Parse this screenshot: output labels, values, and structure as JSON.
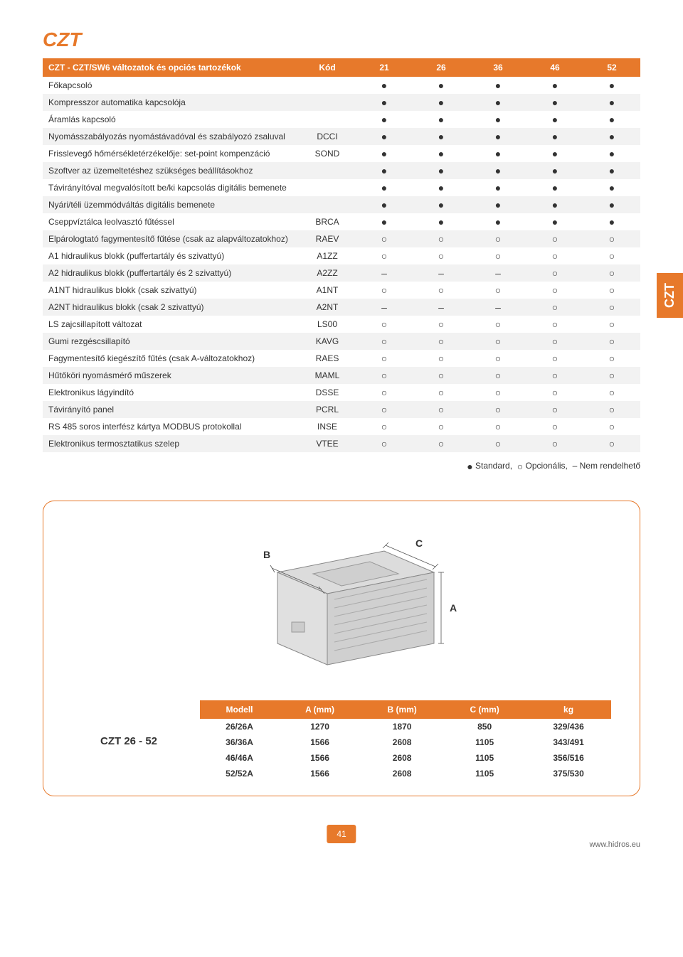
{
  "page_title": "CZT",
  "side_tab": "CZT",
  "accent_color": "#e7792b",
  "spec_table": {
    "header_label": "CZT - CZT/SW6 változatok és opciós tartozékok",
    "code_header": "Kód",
    "columns": [
      "21",
      "26",
      "36",
      "46",
      "52"
    ],
    "symbol_map": {
      "std": "●",
      "opt": "○",
      "na": "–"
    },
    "rows": [
      {
        "label": "Főkapcsoló",
        "code": "",
        "vals": [
          "std",
          "std",
          "std",
          "std",
          "std"
        ]
      },
      {
        "label": "Kompresszor automatika kapcsolója",
        "code": "",
        "vals": [
          "std",
          "std",
          "std",
          "std",
          "std"
        ]
      },
      {
        "label": "Áramlás kapcsoló",
        "code": "",
        "vals": [
          "std",
          "std",
          "std",
          "std",
          "std"
        ]
      },
      {
        "label": "Nyomásszabályozás nyomástávadóval és szabályozó zsaluval",
        "code": "DCCI",
        "vals": [
          "std",
          "std",
          "std",
          "std",
          "std"
        ]
      },
      {
        "label": "Frisslevegő hőmérsékletérzékelője: set-point kompenzáció",
        "code": "SOND",
        "vals": [
          "std",
          "std",
          "std",
          "std",
          "std"
        ]
      },
      {
        "label": "Szoftver az üzemeltetéshez szükséges beállításokhoz",
        "code": "",
        "vals": [
          "std",
          "std",
          "std",
          "std",
          "std"
        ]
      },
      {
        "label": "Távirányítóval megvalósított be/ki kapcsolás digitális bemenete",
        "code": "",
        "vals": [
          "std",
          "std",
          "std",
          "std",
          "std"
        ]
      },
      {
        "label": "Nyári/téli üzemmódváltás digitális bemenete",
        "code": "",
        "vals": [
          "std",
          "std",
          "std",
          "std",
          "std"
        ]
      },
      {
        "label": "Cseppvíztálca leolvasztó fűtéssel",
        "code": "BRCA",
        "vals": [
          "std",
          "std",
          "std",
          "std",
          "std"
        ]
      },
      {
        "label": "Elpárologtató fagymentesítő fűtése (csak az alapváltozatokhoz)",
        "code": "RAEV",
        "vals": [
          "opt",
          "opt",
          "opt",
          "opt",
          "opt"
        ]
      },
      {
        "label": "A1 hidraulikus blokk (puffertartály és szivattyú)",
        "code": "A1ZZ",
        "vals": [
          "opt",
          "opt",
          "opt",
          "opt",
          "opt"
        ]
      },
      {
        "label": "A2 hidraulikus blokk (puffertartály és 2 szivattyú)",
        "code": "A2ZZ",
        "vals": [
          "na",
          "na",
          "na",
          "opt",
          "opt"
        ]
      },
      {
        "label": "A1NT hidraulikus blokk (csak szivattyú)",
        "code": "A1NT",
        "vals": [
          "opt",
          "opt",
          "opt",
          "opt",
          "opt"
        ]
      },
      {
        "label": "A2NT hidraulikus blokk (csak 2 szivattyú)",
        "code": "A2NT",
        "vals": [
          "na",
          "na",
          "na",
          "opt",
          "opt"
        ]
      },
      {
        "label": "LS zajcsillapított változat",
        "code": "LS00",
        "vals": [
          "opt",
          "opt",
          "opt",
          "opt",
          "opt"
        ]
      },
      {
        "label": "Gumi rezgéscsillapító",
        "code": "KAVG",
        "vals": [
          "opt",
          "opt",
          "opt",
          "opt",
          "opt"
        ]
      },
      {
        "label": "Fagymentesítő kiegészítő fűtés (csak A-változatokhoz)",
        "code": "RAES",
        "vals": [
          "opt",
          "opt",
          "opt",
          "opt",
          "opt"
        ]
      },
      {
        "label": "Hűtőköri nyomásmérő műszerek",
        "code": "MAML",
        "vals": [
          "opt",
          "opt",
          "opt",
          "opt",
          "opt"
        ]
      },
      {
        "label": "Elektronikus lágyindító",
        "code": "DSSE",
        "vals": [
          "opt",
          "opt",
          "opt",
          "opt",
          "opt"
        ]
      },
      {
        "label": "Távirányító panel",
        "code": "PCRL",
        "vals": [
          "opt",
          "opt",
          "opt",
          "opt",
          "opt"
        ]
      },
      {
        "label": "RS 485 soros interfész kártya MODBUS protokollal",
        "code": "INSE",
        "vals": [
          "opt",
          "opt",
          "opt",
          "opt",
          "opt"
        ]
      },
      {
        "label": "Elektronikus termosztatikus szelep",
        "code": "VTEE",
        "vals": [
          "opt",
          "opt",
          "opt",
          "opt",
          "opt"
        ]
      }
    ]
  },
  "legend": {
    "std_label": "Standard,",
    "opt_label": "Opcionális,",
    "na_label": "Nem rendelhető"
  },
  "diagram": {
    "labels": {
      "a": "A",
      "b": "B",
      "c": "C"
    },
    "model_label": "CZT 26 - 52"
  },
  "dim_table": {
    "headers": [
      "Modell",
      "A (mm)",
      "B (mm)",
      "C (mm)",
      "kg"
    ],
    "rows": [
      [
        "26/26A",
        "1270",
        "1870",
        "850",
        "329/436"
      ],
      [
        "36/36A",
        "1566",
        "2608",
        "1105",
        "343/491"
      ],
      [
        "46/46A",
        "1566",
        "2608",
        "1105",
        "356/516"
      ],
      [
        "52/52A",
        "1566",
        "2608",
        "1105",
        "375/530"
      ]
    ]
  },
  "footer": {
    "page": "41",
    "url": "www.hidros.eu"
  }
}
